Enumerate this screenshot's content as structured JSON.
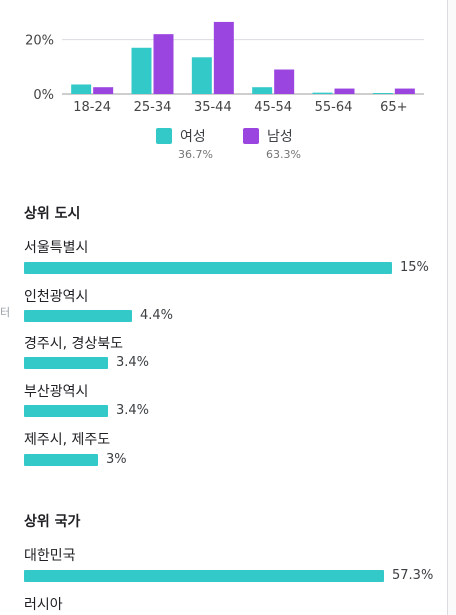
{
  "colors": {
    "female": "#34c9c9",
    "male": "#9a45e0",
    "accent": "#34c9c9"
  },
  "chart_data": {
    "type": "bar",
    "categories": [
      "18-24",
      "25-34",
      "35-44",
      "45-54",
      "55-64",
      "65+"
    ],
    "ytick_labels": [
      "20%",
      "0%"
    ],
    "yticks": [
      20,
      0
    ],
    "ylim": [
      0,
      30
    ],
    "grid": true,
    "series": [
      {
        "name": "여성",
        "values": [
          3.5,
          17,
          13.5,
          2.5,
          0.5,
          0.2
        ]
      },
      {
        "name": "남성",
        "values": [
          2.5,
          22,
          26.5,
          9,
          2,
          2
        ]
      }
    ]
  },
  "legend": [
    {
      "name": "여성",
      "pct": "36.7%"
    },
    {
      "name": "남성",
      "pct": "63.3%"
    }
  ],
  "top_cities": {
    "title": "상위 도시",
    "rows": [
      {
        "label": "서울특별시",
        "pct": "15%",
        "value": 15
      },
      {
        "label": "인천광역시",
        "pct": "4.4%",
        "value": 4.4
      },
      {
        "label": "경주시, 경상북도",
        "pct": "3.4%",
        "value": 3.4
      },
      {
        "label": "부산광역시",
        "pct": "3.4%",
        "value": 3.4
      },
      {
        "label": "제주시, 제주도",
        "pct": "3%",
        "value": 3
      }
    ]
  },
  "top_countries": {
    "title": "상위 국가",
    "rows": [
      {
        "label": "대한민국",
        "pct": "57.3%",
        "value": 57.3
      },
      {
        "label": "러시아"
      }
    ]
  },
  "left_cut_text": "터"
}
